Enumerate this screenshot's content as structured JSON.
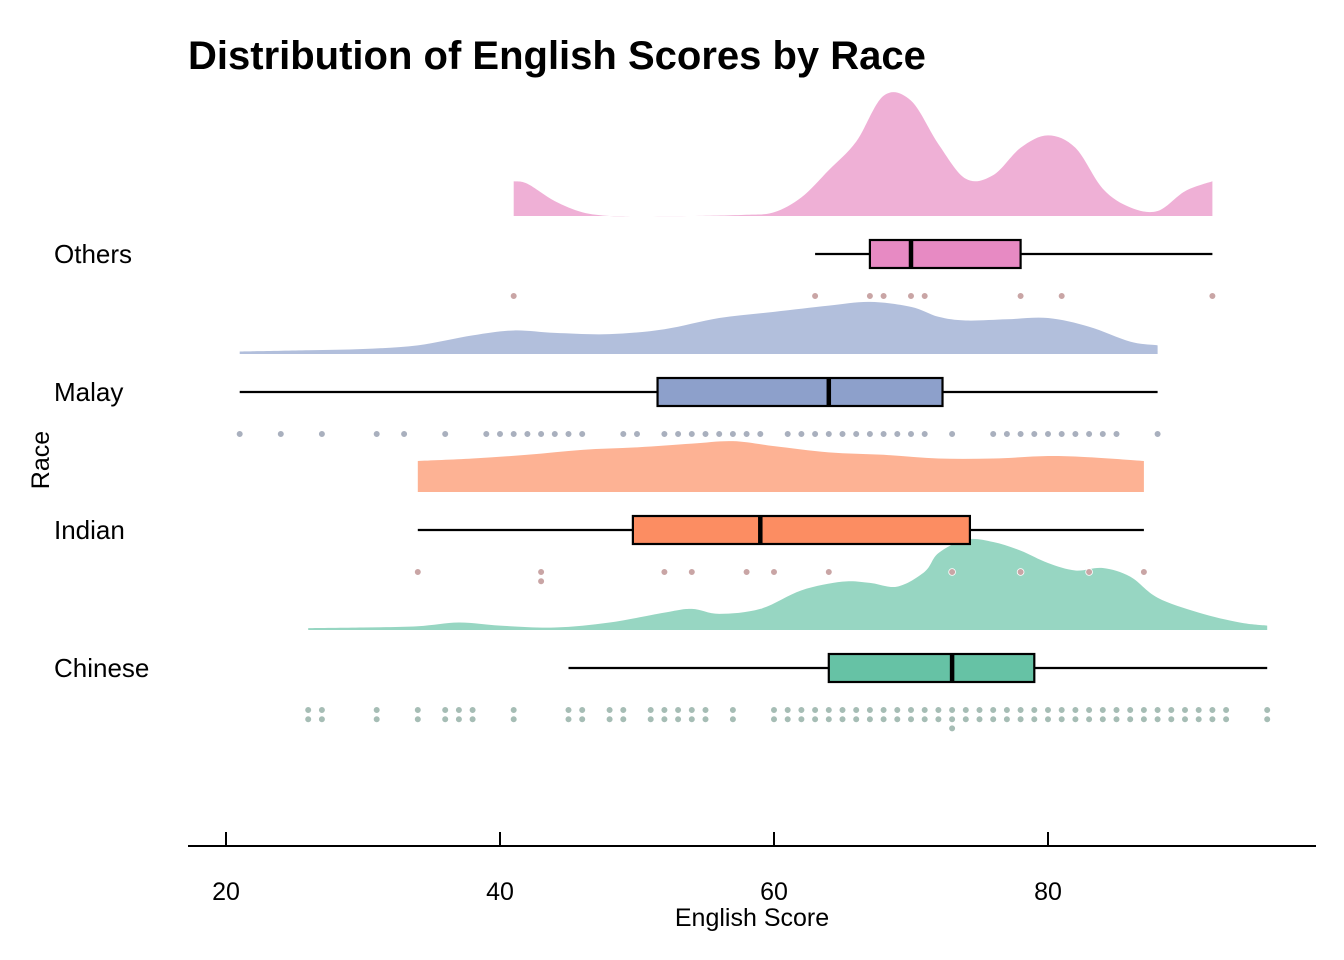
{
  "chart_data": {
    "type": "raincloud",
    "title": "Distribution of English Scores by Race",
    "xlabel": "English Score",
    "ylabel": "Race",
    "xlim": [
      17,
      99
    ],
    "x_ticks": [
      20,
      40,
      60,
      80
    ],
    "grid": false,
    "legend": "none",
    "groups": [
      {
        "name": "Chinese",
        "color": "#66c2a5",
        "box": {
          "min": 45,
          "q1": 64,
          "median": 73,
          "q3": 79,
          "max": 96
        },
        "density": [
          [
            26,
            0.015
          ],
          [
            30,
            0.02
          ],
          [
            34,
            0.03
          ],
          [
            37,
            0.06
          ],
          [
            40,
            0.035
          ],
          [
            44,
            0.02
          ],
          [
            48,
            0.06
          ],
          [
            52,
            0.14
          ],
          [
            54,
            0.17
          ],
          [
            56,
            0.13
          ],
          [
            59,
            0.17
          ],
          [
            62,
            0.32
          ],
          [
            65,
            0.39
          ],
          [
            67,
            0.38
          ],
          [
            69,
            0.35
          ],
          [
            71,
            0.47
          ],
          [
            72,
            0.62
          ],
          [
            74,
            0.73
          ],
          [
            76,
            0.71
          ],
          [
            78,
            0.64
          ],
          [
            80,
            0.54
          ],
          [
            82,
            0.48
          ],
          [
            84,
            0.5
          ],
          [
            86,
            0.43
          ],
          [
            88,
            0.26
          ],
          [
            91,
            0.14
          ],
          [
            94,
            0.06
          ],
          [
            96,
            0.035
          ]
        ],
        "points": [
          26,
          26,
          27,
          27,
          31,
          31,
          34,
          34,
          36,
          36,
          37,
          37,
          38,
          38,
          41,
          41,
          45,
          45,
          46,
          46,
          48,
          48,
          49,
          49,
          51,
          51,
          52,
          52,
          53,
          53,
          54,
          54,
          55,
          55,
          57,
          57,
          60,
          60,
          61,
          61,
          62,
          62,
          63,
          63,
          64,
          64,
          65,
          65,
          66,
          66,
          67,
          67,
          68,
          68,
          69,
          69,
          70,
          70,
          71,
          71,
          72,
          72,
          73,
          73,
          73,
          74,
          74,
          75,
          75,
          76,
          76,
          77,
          77,
          78,
          78,
          79,
          79,
          80,
          80,
          81,
          81,
          82,
          82,
          83,
          83,
          84,
          84,
          85,
          85,
          86,
          86,
          87,
          87,
          88,
          88,
          89,
          89,
          90,
          90,
          91,
          91,
          92,
          92,
          93,
          93,
          96,
          96
        ]
      },
      {
        "name": "Indian",
        "color": "#fc8d62",
        "box": {
          "min": 34,
          "q1": 49.7,
          "median": 59,
          "q3": 74.3,
          "max": 87
        },
        "density": [
          [
            34,
            0.25
          ],
          [
            38,
            0.27
          ],
          [
            42,
            0.3
          ],
          [
            46,
            0.34
          ],
          [
            50,
            0.36
          ],
          [
            54,
            0.39
          ],
          [
            57,
            0.41
          ],
          [
            60,
            0.37
          ],
          [
            64,
            0.32
          ],
          [
            68,
            0.3
          ],
          [
            72,
            0.27
          ],
          [
            76,
            0.27
          ],
          [
            80,
            0.29
          ],
          [
            83,
            0.28
          ],
          [
            87,
            0.25
          ]
        ],
        "points": [
          34,
          43,
          43,
          52,
          54,
          58,
          60,
          64,
          73,
          78,
          83,
          87
        ]
      },
      {
        "name": "Malay",
        "color": "#8da0cb",
        "box": {
          "min": 21,
          "q1": 51.5,
          "median": 64,
          "q3": 72.3,
          "max": 88
        },
        "density": [
          [
            21,
            0.02
          ],
          [
            26,
            0.03
          ],
          [
            30,
            0.04
          ],
          [
            34,
            0.07
          ],
          [
            38,
            0.15
          ],
          [
            41,
            0.19
          ],
          [
            44,
            0.17
          ],
          [
            48,
            0.16
          ],
          [
            52,
            0.2
          ],
          [
            56,
            0.29
          ],
          [
            60,
            0.34
          ],
          [
            64,
            0.39
          ],
          [
            67,
            0.42
          ],
          [
            70,
            0.38
          ],
          [
            72,
            0.3
          ],
          [
            74,
            0.27
          ],
          [
            77,
            0.28
          ],
          [
            80,
            0.29
          ],
          [
            83,
            0.22
          ],
          [
            86,
            0.1
          ],
          [
            88,
            0.07
          ]
        ],
        "points": [
          21,
          24,
          27,
          31,
          33,
          36,
          39,
          40,
          41,
          42,
          43,
          44,
          45,
          46,
          49,
          50,
          52,
          53,
          54,
          55,
          56,
          57,
          58,
          59,
          61,
          62,
          63,
          64,
          65,
          66,
          67,
          68,
          69,
          70,
          71,
          73,
          76,
          77,
          78,
          79,
          80,
          81,
          82,
          83,
          84,
          85,
          88
        ]
      },
      {
        "name": "Others",
        "color": "#e78ac3",
        "box": {
          "min": 63,
          "q1": 67,
          "median": 70,
          "q3": 78,
          "max": 92
        },
        "density": [
          [
            41,
            0.28
          ],
          [
            42,
            0.26
          ],
          [
            44,
            0.12
          ],
          [
            46,
            0.03
          ],
          [
            48,
            0.0
          ],
          [
            50,
            0.0
          ],
          [
            54,
            0.0
          ],
          [
            58,
            0.01
          ],
          [
            60,
            0.03
          ],
          [
            62,
            0.15
          ],
          [
            64,
            0.37
          ],
          [
            66,
            0.6
          ],
          [
            68,
            0.97
          ],
          [
            70,
            0.93
          ],
          [
            72,
            0.58
          ],
          [
            74,
            0.3
          ],
          [
            76,
            0.33
          ],
          [
            78,
            0.55
          ],
          [
            80,
            0.65
          ],
          [
            82,
            0.55
          ],
          [
            84,
            0.22
          ],
          [
            86,
            0.07
          ],
          [
            88,
            0.04
          ],
          [
            90,
            0.2
          ],
          [
            92,
            0.28
          ]
        ],
        "points": [
          41,
          63,
          67,
          68,
          70,
          71,
          78,
          81,
          92
        ]
      }
    ]
  }
}
